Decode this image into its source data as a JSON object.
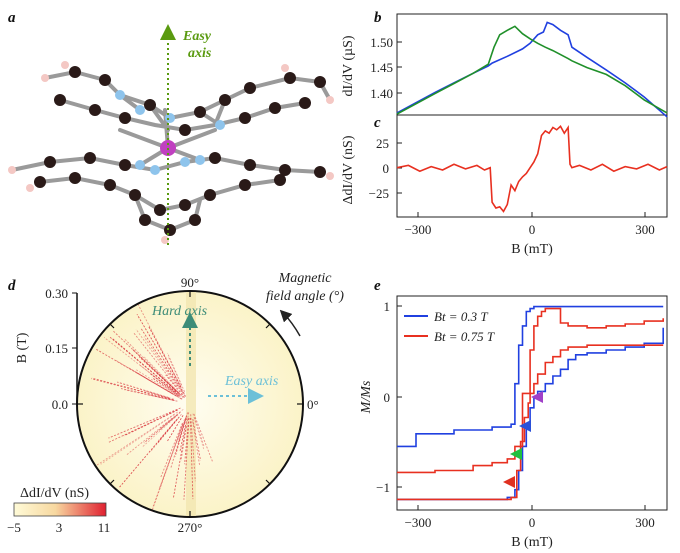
{
  "panels": {
    "a": {
      "label": "a",
      "annotation_line1": "Easy",
      "annotation_line2": "axis"
    },
    "b": {
      "label": "b",
      "ylabel": "dI/dV (µS)",
      "yticks": [
        "1.50",
        "1.45",
        "1.40"
      ]
    },
    "c": {
      "label": "c",
      "ylabel": "ΔdI/dV (nS)",
      "yticks": [
        "25",
        "0",
        "−25"
      ],
      "xticks": [
        "−300",
        "0",
        "300"
      ],
      "xlabel": "B (mT)"
    },
    "d": {
      "label": "d",
      "rtick_labels": [
        "0.30",
        "0.15",
        "0.0"
      ],
      "rlabel": "B (T)",
      "angle_labels": [
        "90°",
        "0°",
        "270°"
      ],
      "field_angle_line1": "Magnetic",
      "field_angle_line2": "field angle (°)",
      "hard_axis": "Hard axis",
      "easy_axis": "Easy axis",
      "colorbar_label": "ΔdI/dV (nS)",
      "colorbar_ticks": [
        "−5",
        "3",
        "11"
      ],
      "colors": {
        "hard_arrow": "#3d8c78",
        "easy_arrow": "#6cc0d8",
        "stripes": "#d8323a"
      }
    },
    "e": {
      "label": "e",
      "ylabel": "M/Ms",
      "yticks": [
        "1",
        "0",
        "−1"
      ],
      "xticks": [
        "−300",
        "0",
        "300"
      ],
      "xlabel": "B (mT)",
      "legend": [
        "Bt = 0.3 T",
        "Bt = 0.75 T"
      ],
      "marker_colors": [
        "#a040c8",
        "#2a50d8",
        "#20c040",
        "#e03020"
      ]
    }
  },
  "chart_data": [
    {
      "type": "line",
      "panel": "b",
      "ylabel": "dI/dV (µS)",
      "xlabel": "B (mT)",
      "xlim": [
        -350,
        360
      ],
      "ylim": [
        1.37,
        1.545
      ],
      "series": [
        {
          "color": "#2040e0",
          "x": [
            -350,
            -300,
            -250,
            -200,
            -150,
            -110,
            -100,
            -60,
            -20,
            0,
            20,
            35,
            45,
            60,
            80,
            100,
            110,
            150,
            200,
            250,
            300,
            360
          ],
          "y": [
            1.372,
            1.39,
            1.408,
            1.425,
            1.442,
            1.455,
            1.46,
            1.472,
            1.485,
            1.495,
            1.51,
            1.515,
            1.532,
            1.528,
            1.518,
            1.51,
            1.488,
            1.47,
            1.448,
            1.425,
            1.4,
            1.365
          ]
        },
        {
          "color": "#20902a",
          "x": [
            -350,
            -300,
            -250,
            -200,
            -150,
            -110,
            -95,
            -80,
            -60,
            -40,
            -20,
            0,
            20,
            40,
            60,
            80,
            100,
            110,
            150,
            200,
            250,
            300,
            360
          ],
          "y": [
            1.37,
            1.388,
            1.406,
            1.424,
            1.442,
            1.458,
            1.488,
            1.51,
            1.518,
            1.525,
            1.512,
            1.503,
            1.495,
            1.488,
            1.482,
            1.475,
            1.468,
            1.464,
            1.452,
            1.44,
            1.42,
            1.395,
            1.372
          ]
        }
      ]
    },
    {
      "type": "line",
      "panel": "c",
      "ylabel": "ΔdI/dV (nS)",
      "xlabel": "B (mT)",
      "xlim": [
        -350,
        360
      ],
      "ylim": [
        -42,
        45
      ],
      "series": [
        {
          "color": "#e83020",
          "x": [
            -350,
            -320,
            -290,
            -260,
            -230,
            -200,
            -170,
            -140,
            -120,
            -105,
            -100,
            -90,
            -80,
            -70,
            -60,
            -50,
            -40,
            -30,
            -20,
            -10,
            0,
            10,
            20,
            30,
            40,
            50,
            60,
            70,
            80,
            90,
            100,
            105,
            110,
            130,
            160,
            190,
            220,
            250,
            280,
            310,
            340,
            360
          ],
          "y": [
            0,
            2,
            -3,
            1,
            -2,
            3,
            -1,
            2,
            -2,
            0,
            -30,
            -35,
            -34,
            -38,
            -32,
            -15,
            -20,
            -12,
            -8,
            -5,
            0,
            5,
            12,
            28,
            32,
            30,
            35,
            33,
            36,
            30,
            35,
            3,
            0,
            2,
            -2,
            3,
            -3,
            1,
            -1,
            3,
            -2,
            1
          ]
        }
      ]
    },
    {
      "type": "line",
      "panel": "e",
      "ylabel": "M/Ms",
      "xlabel": "B (mT)",
      "xlim": [
        -350,
        360
      ],
      "ylim": [
        -1.1,
        1.1
      ],
      "series": [
        {
          "name": "Bt = 0.3 T",
          "color": "#2040e0",
          "x": [
            -350,
            -300,
            -200,
            -100,
            -50,
            -40,
            -30,
            -20,
            -10,
            0,
            10,
            20,
            30,
            40,
            50,
            60,
            80,
            100,
            150,
            200,
            250,
            300,
            350
          ],
          "y": [
            -0.45,
            -0.32,
            -0.28,
            -0.25,
            -0.22,
            0.2,
            0.6,
            0.8,
            0.95,
            0.98,
            1.0,
            1.0,
            1.0,
            1.0,
            1.0,
            1.0,
            1.0,
            1.0,
            1.0,
            1.0,
            1.0,
            1.0,
            1.0
          ]
        },
        {
          "color": "#2040e0",
          "x": [
            -350,
            -100,
            -60,
            -40,
            -30,
            -20,
            -10,
            0,
            10,
            20,
            40,
            60,
            80,
            100,
            120,
            150,
            200,
            250,
            300,
            350
          ],
          "y": [
            -1.0,
            -1.0,
            -0.98,
            -0.9,
            -0.7,
            -0.45,
            -0.25,
            -0.05,
            0.05,
            0.12,
            0.2,
            0.28,
            0.35,
            0.45,
            0.5,
            0.52,
            0.55,
            0.58,
            0.62,
            0.78
          ]
        },
        {
          "name": "Bt = 0.75 T",
          "color": "#e83020",
          "x": [
            -350,
            -250,
            -150,
            -100,
            -60,
            -40,
            -20,
            0,
            10,
            20,
            30,
            40,
            50,
            80,
            100,
            150,
            200,
            250,
            300,
            350
          ],
          "y": [
            -0.72,
            -0.7,
            -0.65,
            -0.62,
            -0.58,
            -0.45,
            0.1,
            0.55,
            0.8,
            0.9,
            0.95,
            0.98,
            0.98,
            0.83,
            0.8,
            0.78,
            0.8,
            0.82,
            0.85,
            0.88
          ]
        },
        {
          "color": "#e83020",
          "x": [
            -350,
            -100,
            -50,
            -35,
            -25,
            -15,
            -5,
            0,
            10,
            20,
            40,
            60,
            80,
            100,
            150,
            200,
            250,
            300,
            350
          ],
          "y": [
            -1.0,
            -1.0,
            -0.98,
            -0.7,
            -0.4,
            -0.15,
            0.0,
            0.1,
            0.2,
            0.3,
            0.42,
            0.48,
            0.55,
            0.58,
            0.6,
            0.6,
            0.6,
            0.6,
            0.6
          ]
        }
      ]
    }
  ]
}
